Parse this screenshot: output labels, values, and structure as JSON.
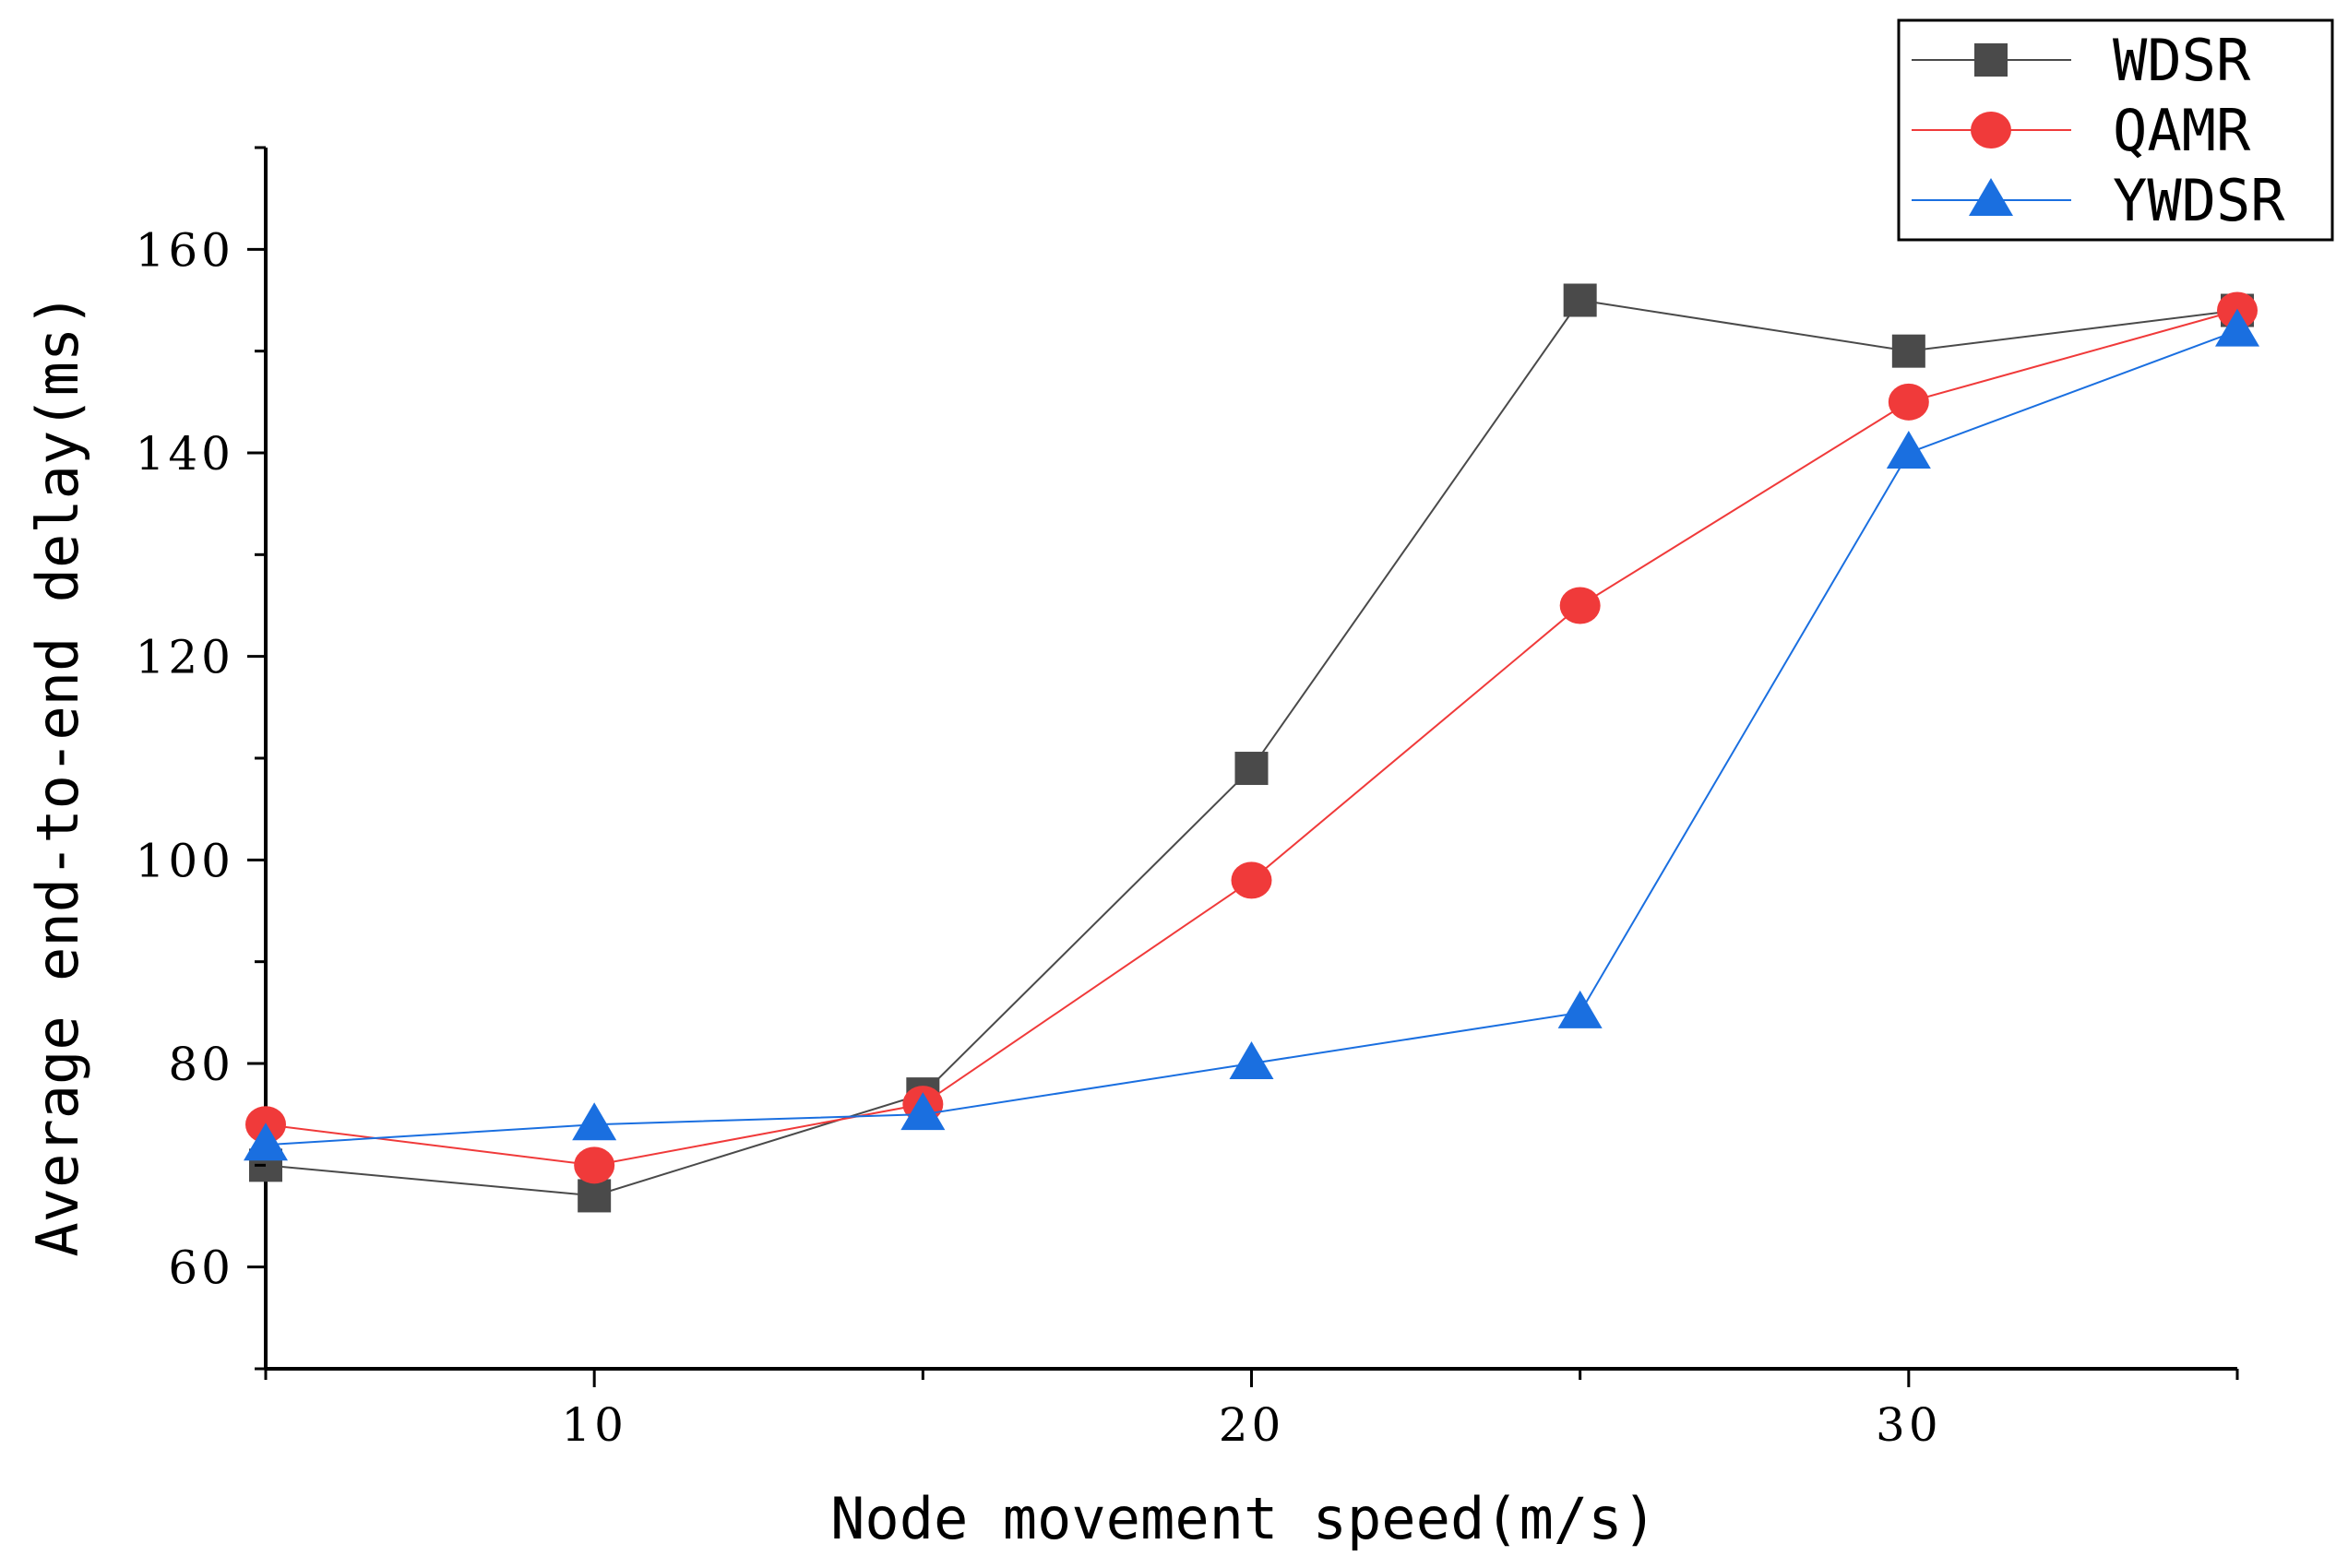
{
  "chart_data": {
    "type": "line",
    "title": "",
    "xlabel": "Node movement speed(m/s)",
    "ylabel": "Average end-to-end delay(ms)",
    "xlim": [
      5,
      35
    ],
    "ylim": [
      50,
      170
    ],
    "xticks": [
      10,
      20,
      30
    ],
    "yticks": [
      60,
      80,
      100,
      120,
      140,
      160
    ],
    "x": [
      5,
      10,
      15,
      20,
      25,
      30,
      35
    ],
    "series": [
      {
        "name": "WDSR",
        "marker": "square",
        "color": "#4a4a4a",
        "values": [
          70,
          67,
          77,
          109,
          155,
          150,
          154
        ]
      },
      {
        "name": "QAMR",
        "marker": "circle",
        "color": "#f03a3a",
        "values": [
          74,
          70,
          76,
          98,
          125,
          145,
          154
        ]
      },
      {
        "name": "YWDSR",
        "marker": "triangle",
        "color": "#1a6fe0",
        "values": [
          72,
          74,
          75,
          80,
          85,
          140,
          152
        ]
      }
    ],
    "legend_position": "top-right",
    "grid": false
  }
}
